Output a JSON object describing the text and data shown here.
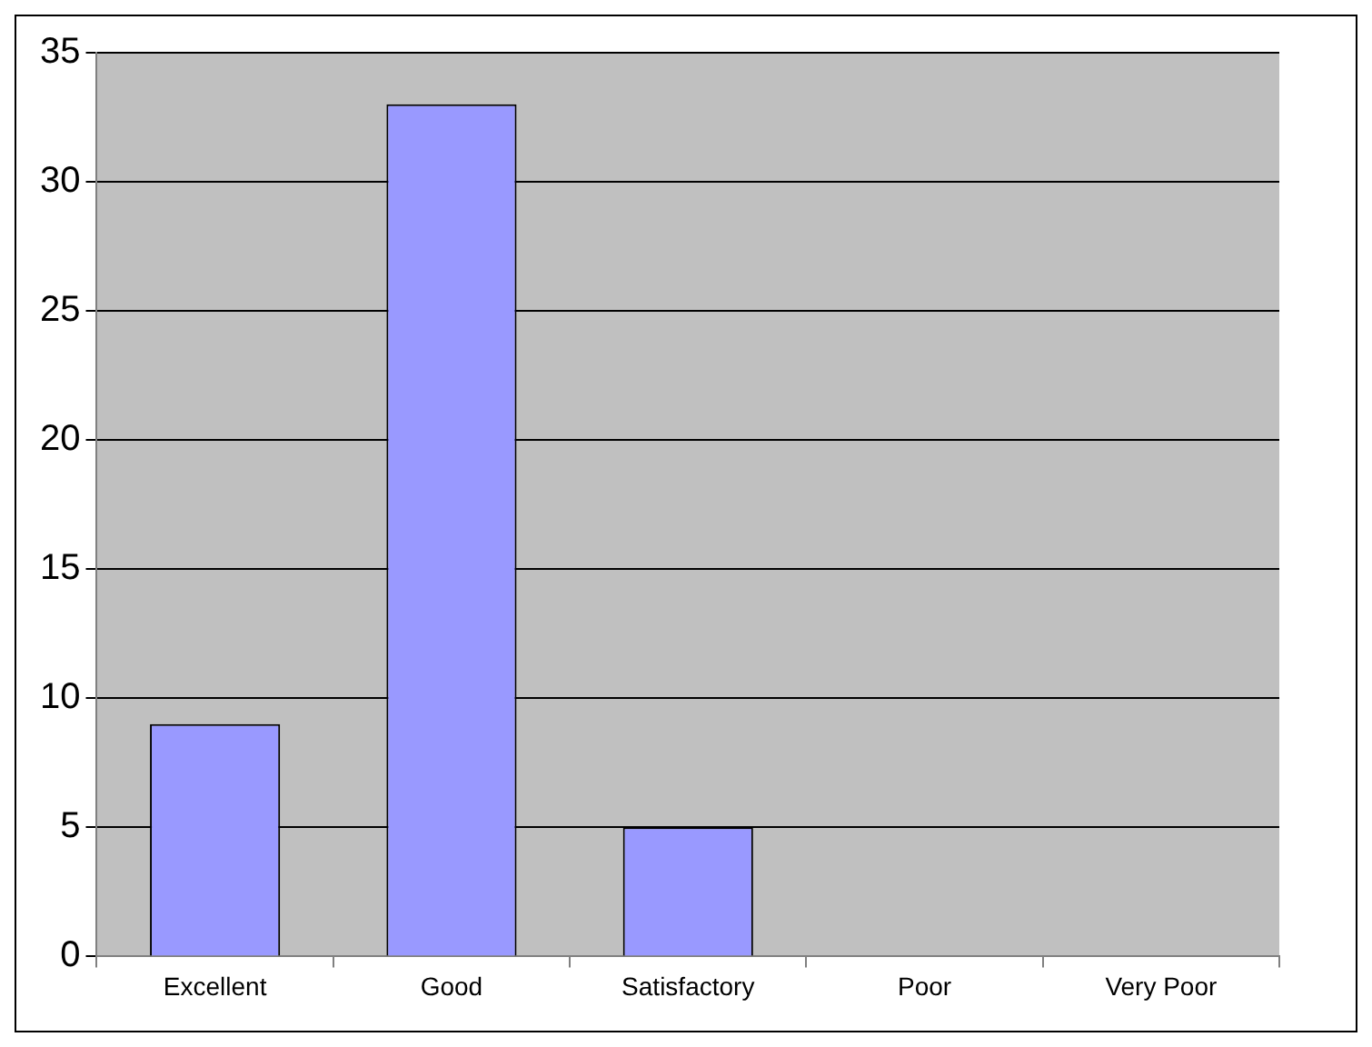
{
  "chart_data": {
    "type": "bar",
    "categories": [
      "Excellent",
      "Good",
      "Satisfactory",
      "Poor",
      "Very Poor"
    ],
    "values": [
      9,
      33,
      5,
      0,
      0
    ],
    "color": "#9999ff",
    "ylim": [
      0,
      35
    ],
    "yticks": [
      0,
      5,
      10,
      15,
      20,
      25,
      30,
      35
    ],
    "grid": "y",
    "legend": false
  }
}
